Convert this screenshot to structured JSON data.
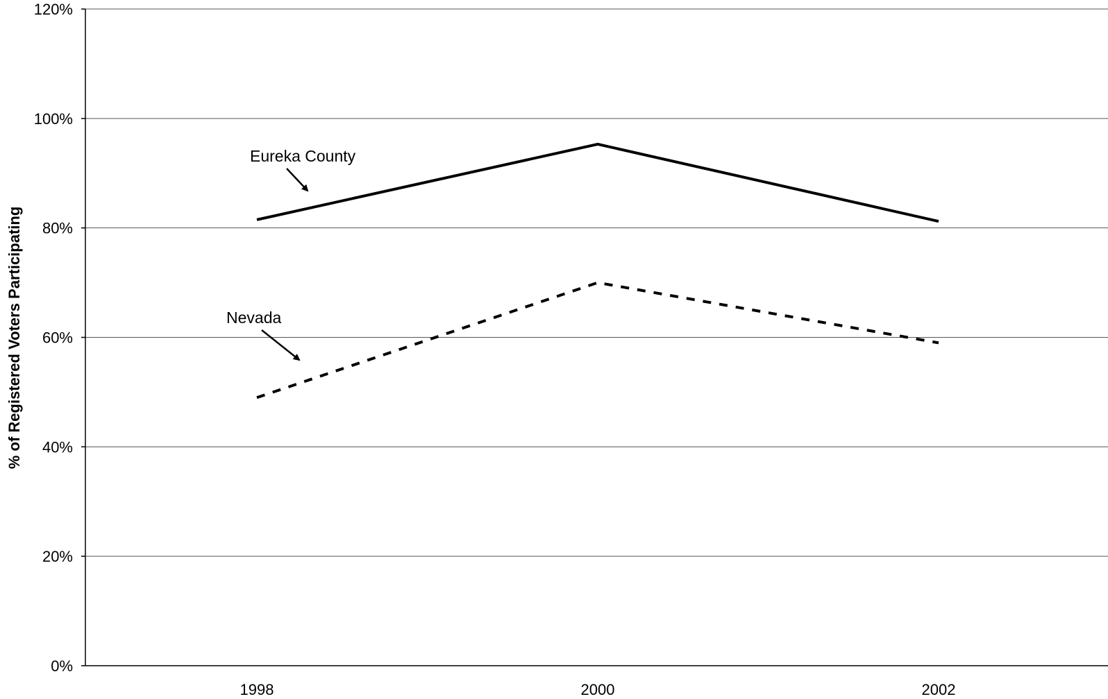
{
  "chart_data": {
    "type": "line",
    "title": "",
    "xlabel": "",
    "ylabel": "% of Registered Voters Participating",
    "categories": [
      "1998",
      "2000",
      "2002"
    ],
    "ylim": [
      0,
      120
    ],
    "y_ticks": [
      "0%",
      "20%",
      "40%",
      "60%",
      "80%",
      "100%",
      "120%"
    ],
    "grid": "horizontal",
    "legend": "none",
    "series": [
      {
        "name": "Eureka County",
        "values": [
          81.5,
          95.3,
          81.2
        ],
        "style": "solid",
        "color": "#000000"
      },
      {
        "name": "Nevada",
        "values": [
          49.0,
          70.0,
          59.0
        ],
        "style": "dashed",
        "color": "#000000"
      }
    ],
    "annotations": [
      {
        "text": "Eureka County",
        "series": 0
      },
      {
        "text": "Nevada",
        "series": 1
      }
    ]
  }
}
